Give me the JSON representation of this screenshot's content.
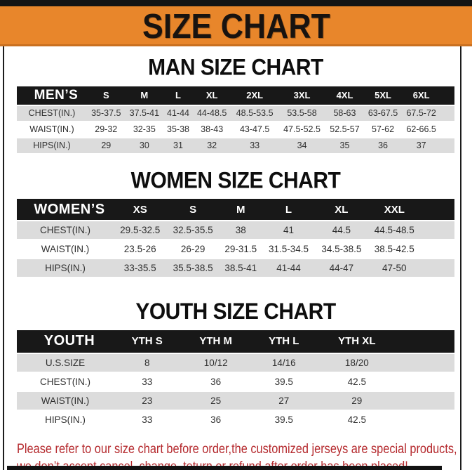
{
  "banner": {
    "title": "SIZE CHART",
    "bg_color": "#e8862b"
  },
  "sections": [
    {
      "title": "MAN SIZE CHART",
      "header_label": "MEN’S",
      "columns": [
        "S",
        "M",
        "L",
        "XL",
        "2XL",
        "3XL",
        "4XL",
        "5XL",
        "6XL"
      ],
      "rows": [
        {
          "label": "CHEST(IN.)",
          "values": [
            "35-37.5",
            "37.5-41",
            "41-44",
            "44-48.5",
            "48.5-53.5",
            "53.5-58",
            "58-63",
            "63-67.5",
            "67.5-72"
          ]
        },
        {
          "label": "WAIST(IN.)",
          "values": [
            "29-32",
            "32-35",
            "35-38",
            "38-43",
            "43-47.5",
            "47.5-52.5",
            "52.5-57",
            "57-62",
            "62-66.5"
          ]
        },
        {
          "label": "HIPS(IN.)",
          "values": [
            "29",
            "30",
            "31",
            "32",
            "33",
            "34",
            "35",
            "36",
            "37"
          ]
        }
      ]
    },
    {
      "title": "WOMEN SIZE CHART",
      "header_label": "WOMEN’S",
      "columns": [
        "XS",
        "S",
        "M",
        "L",
        "XL",
        "XXL"
      ],
      "rows": [
        {
          "label": "CHEST(IN.)",
          "values": [
            "29.5-32.5",
            "32.5-35.5",
            "38",
            "41",
            "44.5",
            "44.5-48.5"
          ]
        },
        {
          "label": "WAIST(IN.)",
          "values": [
            "23.5-26",
            "26-29",
            "29-31.5",
            "31.5-34.5",
            "34.5-38.5",
            "38.5-42.5"
          ]
        },
        {
          "label": "HIPS(IN.)",
          "values": [
            "33-35.5",
            "35.5-38.5",
            "38.5-41",
            "41-44",
            "44-47",
            "47-50"
          ]
        }
      ]
    },
    {
      "title": "YOUTH SIZE CHART",
      "header_label": "YOUTH",
      "columns": [
        "YTH S",
        "YTH M",
        "YTH L",
        "YTH XL"
      ],
      "rows": [
        {
          "label": "U.S.SIZE",
          "values": [
            "8",
            "10/12",
            "14/16",
            "18/20"
          ]
        },
        {
          "label": "CHEST(IN.)",
          "values": [
            "33",
            "36",
            "39.5",
            "42.5"
          ]
        },
        {
          "label": "WAIST(IN.)",
          "values": [
            "23",
            "25",
            "27",
            "29"
          ]
        },
        {
          "label": "HIPS(IN.)",
          "values": [
            "33",
            "36",
            "39.5",
            "42.5"
          ]
        }
      ]
    }
  ],
  "footer": {
    "line1": "Please refer to our size chart before order,the customized jerseys are special products,",
    "line2": "we don’t accept cancel, change, teturn or refund after order has been placed!",
    "text_color": "#b52a2e"
  },
  "colors": {
    "banner_orange": "#e8862b",
    "table_header_black": "#181818",
    "row_shade_gray": "#dcdcdc",
    "footer_red": "#b52a2e"
  }
}
